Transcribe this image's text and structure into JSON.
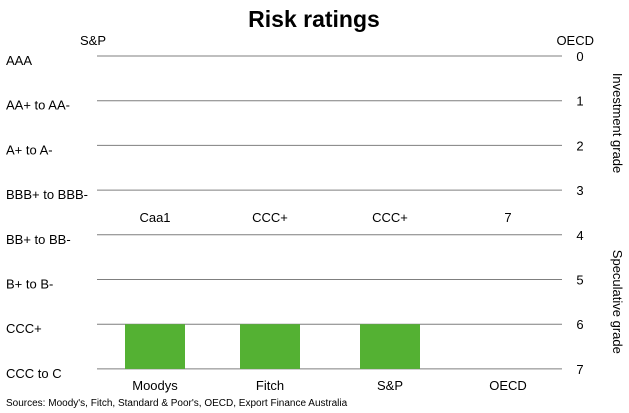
{
  "chart_data": {
    "type": "bar",
    "title": "Risk ratings",
    "left_axis_title": "S&P",
    "right_axis_title": "OECD",
    "left_ticks": [
      "AAA",
      "AA+ to AA-",
      "A+ to A-",
      "BBB+ to BBB-",
      "BB+ to BB-",
      "B+ to B-",
      "CCC+",
      "CCC to C"
    ],
    "right_ticks": [
      "0",
      "1",
      "2",
      "3",
      "4",
      "5",
      "6",
      "7"
    ],
    "right_groups": [
      {
        "label": "Investment grade",
        "from": 0,
        "to": 3
      },
      {
        "label": "Speculative grade",
        "from": 4,
        "to": 7
      }
    ],
    "ylim": [
      0,
      7
    ],
    "inverted": true,
    "categories": [
      "Moodys",
      "Fitch",
      "S&P",
      "OECD"
    ],
    "values": [
      6,
      6,
      6,
      7
    ],
    "value_labels": [
      "Caa1",
      "CCC+",
      "CCC+",
      "7"
    ],
    "bar_color": "#54B133",
    "grid": true
  },
  "source": "Sources: Moody's, Fitch, Standard & Poor's, OECD, Export Finance Australia"
}
